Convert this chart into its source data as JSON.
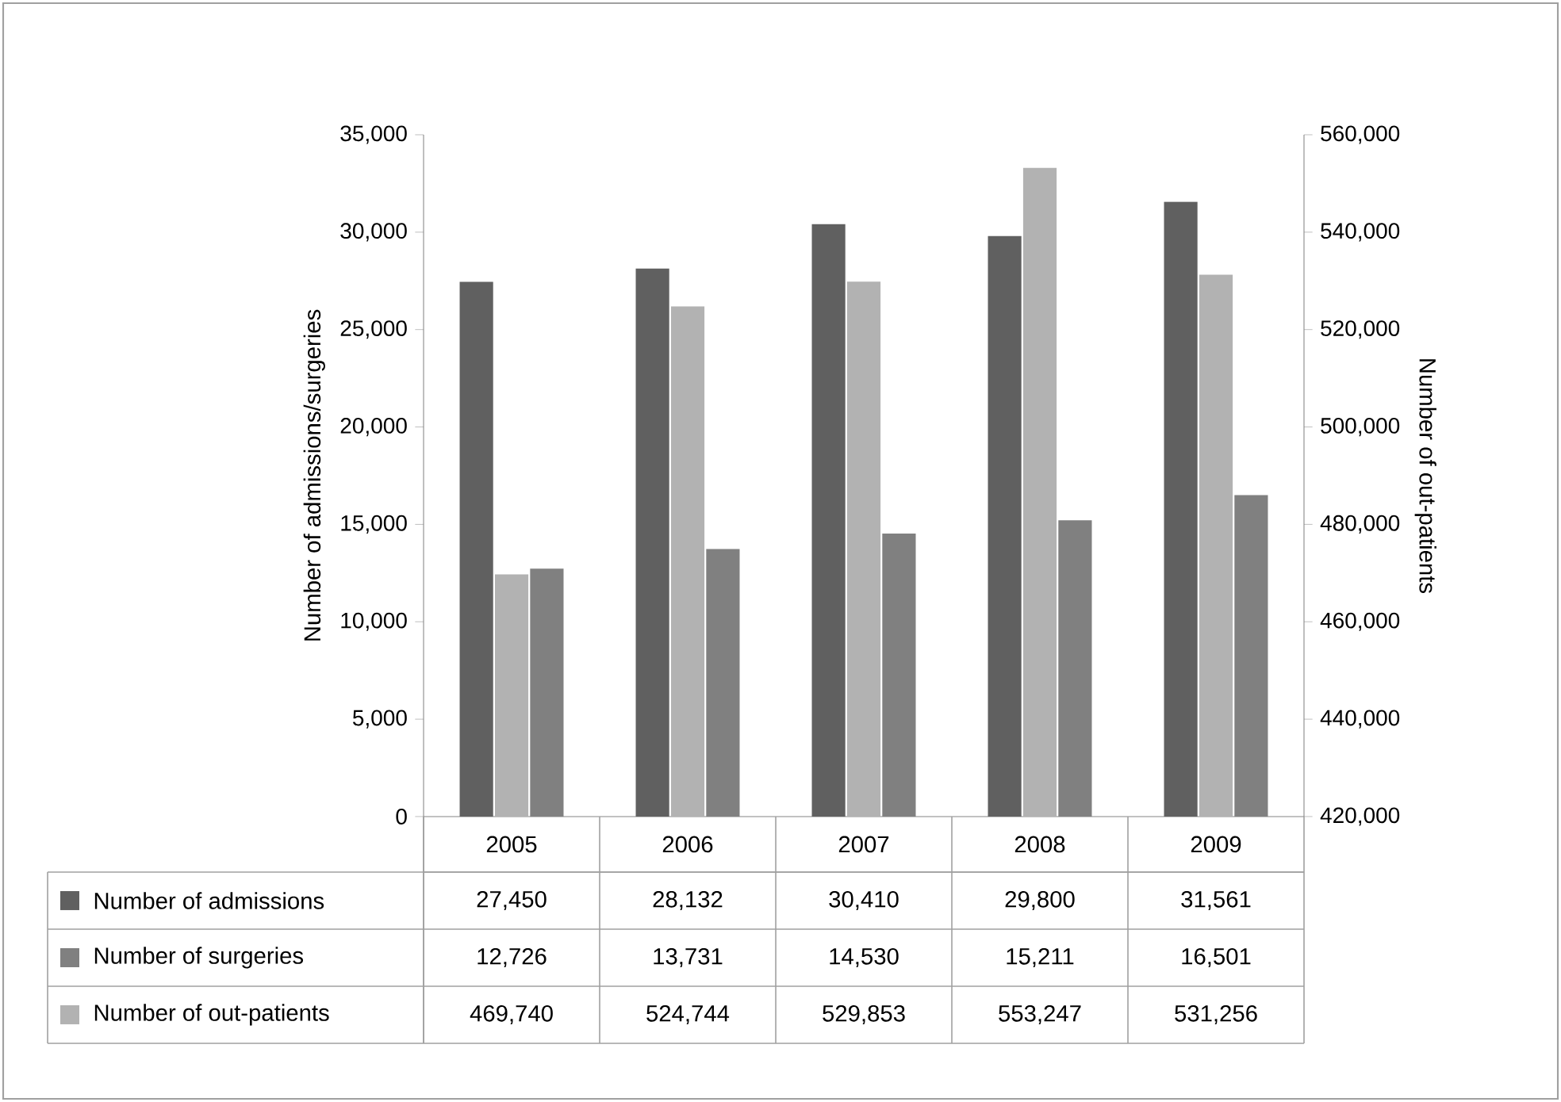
{
  "chart_data": {
    "type": "bar",
    "ylabel": "Number of admissions/surgeries",
    "y2label": "Number of out-patients",
    "categories": [
      "2005",
      "2006",
      "2007",
      "2008",
      "2009"
    ],
    "series": [
      {
        "name": "Number of admissions",
        "color": "#606060",
        "values": [
          27450,
          28132,
          30410,
          29800,
          31561
        ],
        "value_labels": [
          "27,450",
          "28,132",
          "30,410",
          "29,800",
          "31,561"
        ]
      },
      {
        "name": "Number of surgeries",
        "color": "#808080",
        "values": [
          12726,
          13731,
          14530,
          15211,
          16501
        ],
        "value_labels": [
          "12,726",
          "13,731",
          "14,530",
          "15,211",
          "16,501"
        ]
      },
      {
        "name": "Number of out-patients",
        "color": "#b2b2b2",
        "axis": "y2",
        "values": [
          469740,
          524744,
          529853,
          553247,
          531256
        ],
        "value_labels": [
          "469,740",
          "524,744",
          "529,853",
          "553,247",
          "531,256"
        ]
      }
    ],
    "ylim": [
      0,
      35000
    ],
    "yticks": [
      0,
      {
        "value": 5000,
        "label": "5,000"
      },
      {
        "value": 10000,
        "label": "10,000"
      },
      {
        "value": 15000,
        "label": "15,000"
      },
      {
        "value": 20000,
        "label": "20,000"
      },
      {
        "value": 25000,
        "label": "25,000"
      },
      {
        "value": 30000,
        "label": "30,000"
      },
      {
        "value": 35000,
        "label": "35,000"
      }
    ],
    "y2lim": [
      420000,
      560000
    ],
    "y2ticks": [
      {
        "value": 420000,
        "label": "420,000"
      },
      {
        "value": 440000,
        "label": "440,000"
      },
      {
        "value": 460000,
        "label": "460,000"
      },
      {
        "value": 480000,
        "label": "480,000"
      },
      {
        "value": 500000,
        "label": "500,000"
      },
      {
        "value": 520000,
        "label": "520,000"
      },
      {
        "value": 540000,
        "label": "540,000"
      },
      {
        "value": 560000,
        "label": "560,000"
      }
    ],
    "grid": false,
    "legend": "bottom"
  }
}
